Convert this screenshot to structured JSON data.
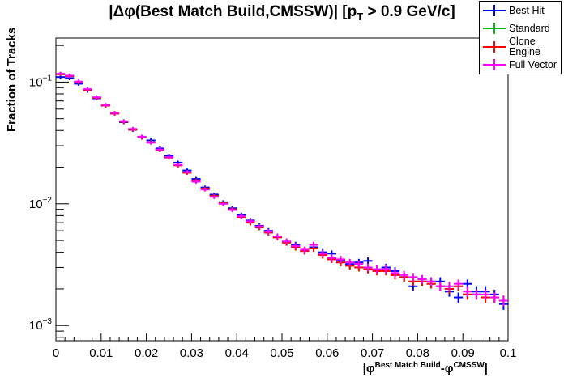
{
  "title": {
    "p1": "|Δφ(Best Match Build,CMSSW)| [p",
    "sub": "T",
    "p2": " > 0.9 GeV/c]"
  },
  "legend": {
    "entries": [
      {
        "label": "Best Hit",
        "color": "#0000ff"
      },
      {
        "label": "Standard",
        "color": "#00bf00"
      },
      {
        "label": "Clone Engine",
        "color": "#ff0000"
      },
      {
        "label": "Full Vector",
        "color": "#ff00ff"
      }
    ]
  },
  "xlabel_parts": {
    "p1": "|φ",
    "sup1": "Best Match Build",
    "p2": "-φ",
    "sup2": "CMSSW",
    "p3": "|"
  },
  "chart_data": {
    "type": "errorbar-histogram",
    "title": "|Δφ(Best Match Build,CMSSW)| [p_{T} > 0.9 GeV/c]",
    "ylabel": "Fraction of Tracks",
    "xlabel": "|φ^{Best Match Build}-φ^{CMSSW}|",
    "log_y": true,
    "grid": false,
    "legend_position": "top-right",
    "xlim": [
      0,
      0.1
    ],
    "ylim": [
      0.00075,
      0.23
    ],
    "bin_width": 0.002,
    "yerr_coeff": 0.004,
    "xticks": [
      0,
      0.01,
      0.02,
      0.03,
      0.04,
      0.05,
      0.06,
      0.07,
      0.08,
      0.09,
      0.1
    ],
    "xtick_labels": [
      "0",
      "0.01",
      "0.02",
      "0.03",
      "0.04",
      "0.05",
      "0.06",
      "0.07",
      "0.08",
      "0.09",
      "0.1"
    ],
    "ytick_exponents": [
      -3,
      -2,
      -1
    ],
    "x": [
      0.001,
      0.003,
      0.005,
      0.007,
      0.009,
      0.011,
      0.013,
      0.015,
      0.017,
      0.019,
      0.021,
      0.023,
      0.025,
      0.027,
      0.029,
      0.031,
      0.033,
      0.035,
      0.037,
      0.039,
      0.041,
      0.043,
      0.045,
      0.047,
      0.049,
      0.051,
      0.053,
      0.055,
      0.057,
      0.059,
      0.061,
      0.063,
      0.065,
      0.067,
      0.069,
      0.071,
      0.073,
      0.075,
      0.077,
      0.079,
      0.081,
      0.083,
      0.085,
      0.087,
      0.089,
      0.091,
      0.093,
      0.095,
      0.097,
      0.099
    ],
    "series": [
      {
        "name": "Best Hit",
        "color": "#0000ff",
        "values": [
          0.11,
          0.108,
          0.097,
          0.085,
          0.0735,
          0.064,
          0.055,
          0.0468,
          0.0405,
          0.035,
          0.0332,
          0.0285,
          0.0248,
          0.0218,
          0.0188,
          0.016,
          0.0136,
          0.0119,
          0.0103,
          0.0092,
          0.0081,
          0.0073,
          0.0066,
          0.006,
          0.0054,
          0.0049,
          0.0046,
          0.0041,
          0.0044,
          0.004,
          0.0039,
          0.0034,
          0.0032,
          0.0033,
          0.0034,
          0.0029,
          0.003,
          0.0028,
          0.0025,
          0.0021,
          0.0024,
          0.0023,
          0.0023,
          0.0019,
          0.0017,
          0.0022,
          0.0019,
          0.0019,
          0.0018,
          0.0015
        ]
      },
      {
        "name": "Standard",
        "color": "#00bf00",
        "values": [
          0.116,
          0.112,
          0.1,
          0.0865,
          0.0743,
          0.0641,
          0.0551,
          0.0472,
          0.0407,
          0.0352,
          0.032,
          0.0276,
          0.024,
          0.0207,
          0.018,
          0.0155,
          0.0133,
          0.0116,
          0.0101,
          0.009,
          0.0078,
          0.007,
          0.0064,
          0.0058,
          0.0053,
          0.0048,
          0.0044,
          0.0041,
          0.0043,
          0.0038,
          0.0035,
          0.0033,
          0.0031,
          0.003,
          0.0029,
          0.0028,
          0.0028,
          0.0026,
          0.0025,
          0.0023,
          0.0023,
          0.0022,
          0.0021,
          0.002,
          0.0021,
          0.0018,
          0.0018,
          0.0017,
          0.0017,
          0.0016
        ]
      },
      {
        "name": "Clone Engine",
        "color": "#ff0000",
        "values": [
          0.116,
          0.112,
          0.1,
          0.0865,
          0.0743,
          0.0641,
          0.0551,
          0.0472,
          0.0407,
          0.0352,
          0.032,
          0.0276,
          0.024,
          0.0207,
          0.018,
          0.0155,
          0.0133,
          0.0116,
          0.0101,
          0.009,
          0.0078,
          0.007,
          0.0064,
          0.0058,
          0.0053,
          0.0048,
          0.0044,
          0.0041,
          0.0043,
          0.0038,
          0.0035,
          0.0033,
          0.0031,
          0.003,
          0.0029,
          0.0028,
          0.0028,
          0.0026,
          0.0025,
          0.0023,
          0.0023,
          0.0022,
          0.0021,
          0.002,
          0.0021,
          0.0018,
          0.0018,
          0.0017,
          0.0017,
          0.0016
        ]
      },
      {
        "name": "Full Vector",
        "color": "#ff00ff",
        "values": [
          0.117,
          0.113,
          0.101,
          0.0875,
          0.075,
          0.0648,
          0.0557,
          0.0477,
          0.0412,
          0.0356,
          0.0318,
          0.0279,
          0.0242,
          0.0209,
          0.0182,
          0.0152,
          0.0131,
          0.0114,
          0.01,
          0.0089,
          0.0079,
          0.0072,
          0.0065,
          0.0059,
          0.0054,
          0.0049,
          0.0045,
          0.0042,
          0.0046,
          0.0039,
          0.0036,
          0.0035,
          0.0033,
          0.0032,
          0.003,
          0.0029,
          0.0029,
          0.0027,
          0.0026,
          0.0025,
          0.0024,
          0.0023,
          0.0021,
          0.0021,
          0.0022,
          0.0019,
          0.0018,
          0.0018,
          0.0017,
          0.0016
        ]
      }
    ]
  }
}
